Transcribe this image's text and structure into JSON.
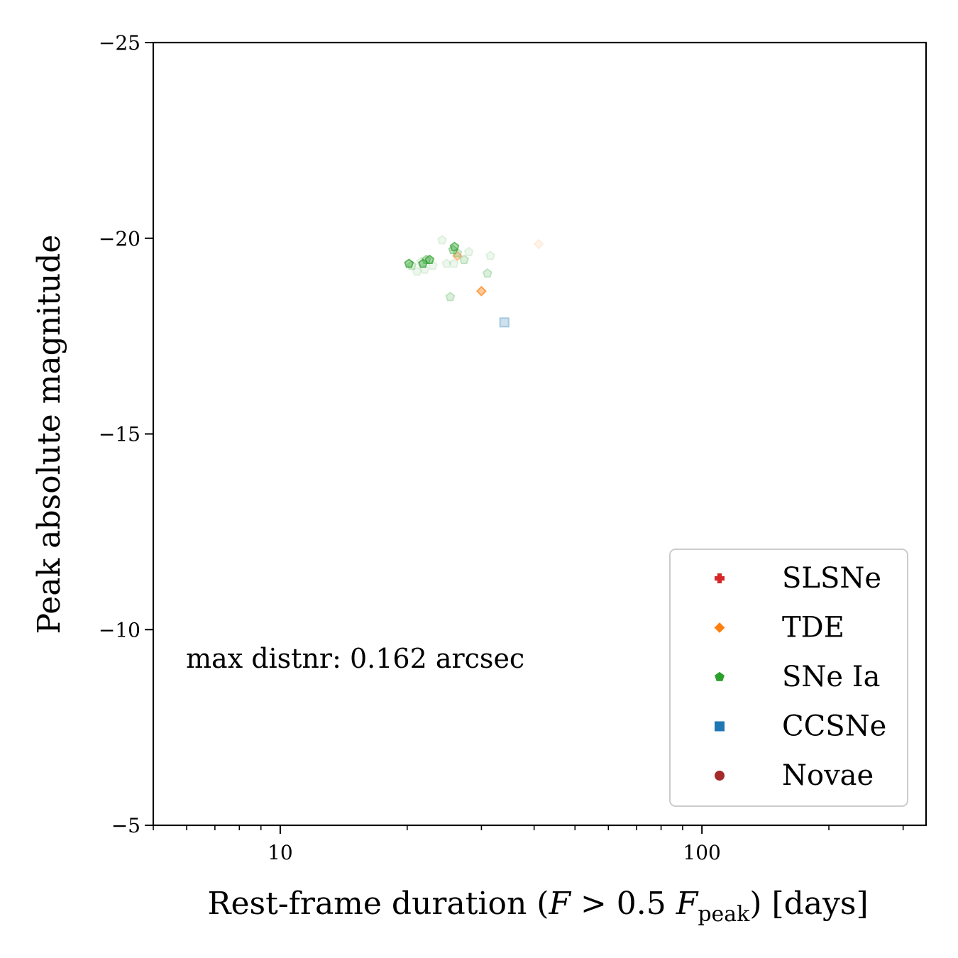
{
  "chart_data": {
    "type": "scatter",
    "xlabel_parts": {
      "main": "Rest-frame duration (",
      "var": "F",
      "op": " > 0.5 ",
      "var2": "F",
      "sub": "peak",
      "end": ") [days]"
    },
    "ylabel": "Peak absolute magnitude",
    "xscale": "log",
    "xlim": [
      5,
      340
    ],
    "ylim": [
      -5,
      -25
    ],
    "y_inverted": true,
    "x_ticks": [
      10,
      100
    ],
    "x_tick_labels": [
      "10",
      "100"
    ],
    "y_ticks": [
      -25,
      -20,
      -15,
      -10,
      -5
    ],
    "y_tick_labels": [
      "−25",
      "−20",
      "−15",
      "−10",
      "−5"
    ],
    "grid": false,
    "legend_position": "lower right",
    "annotation": "max distnr: 0.162 arcsec",
    "series": [
      {
        "name": "SLSNe",
        "marker": "plus",
        "color": "#d62728",
        "points": []
      },
      {
        "name": "TDE",
        "marker": "diamond",
        "color": "#ff7f0e",
        "points": [
          {
            "x": 26.3,
            "y": -19.55,
            "alpha": 0.5
          },
          {
            "x": 30.0,
            "y": -18.65,
            "alpha": 0.75
          },
          {
            "x": 41.0,
            "y": -19.85,
            "alpha": 0.15
          }
        ]
      },
      {
        "name": "SNe Ia",
        "marker": "pentagon",
        "color": "#2ca02c",
        "points": [
          {
            "x": 20.2,
            "y": -19.35,
            "alpha": 0.75
          },
          {
            "x": 20.5,
            "y": -19.3,
            "alpha": 0.3
          },
          {
            "x": 21.1,
            "y": -19.15,
            "alpha": 0.15
          },
          {
            "x": 21.6,
            "y": -19.4,
            "alpha": 0.15
          },
          {
            "x": 21.8,
            "y": -19.35,
            "alpha": 0.75
          },
          {
            "x": 22.0,
            "y": -19.2,
            "alpha": 0.15
          },
          {
            "x": 22.2,
            "y": -19.45,
            "alpha": 0.45
          },
          {
            "x": 22.6,
            "y": -19.45,
            "alpha": 0.75
          },
          {
            "x": 23.0,
            "y": -19.3,
            "alpha": 0.15
          },
          {
            "x": 24.2,
            "y": -19.95,
            "alpha": 0.15
          },
          {
            "x": 24.8,
            "y": -19.35,
            "alpha": 0.15
          },
          {
            "x": 25.3,
            "y": -18.5,
            "alpha": 0.3
          },
          {
            "x": 25.7,
            "y": -19.7,
            "alpha": 0.45
          },
          {
            "x": 25.8,
            "y": -19.35,
            "alpha": 0.15
          },
          {
            "x": 25.9,
            "y": -19.78,
            "alpha": 0.7
          },
          {
            "x": 26.3,
            "y": -19.62,
            "alpha": 0.3
          },
          {
            "x": 27.3,
            "y": -19.45,
            "alpha": 0.3
          },
          {
            "x": 28.0,
            "y": -19.65,
            "alpha": 0.15
          },
          {
            "x": 31.0,
            "y": -19.1,
            "alpha": 0.3
          },
          {
            "x": 31.5,
            "y": -19.55,
            "alpha": 0.15
          }
        ]
      },
      {
        "name": "CCSNe",
        "marker": "square",
        "color": "#1f77b4",
        "points": [
          {
            "x": 34.0,
            "y": -17.85,
            "alpha": 0.4
          }
        ]
      },
      {
        "name": "Novae",
        "marker": "circle",
        "color": "#a52a2a",
        "points": []
      }
    ]
  }
}
